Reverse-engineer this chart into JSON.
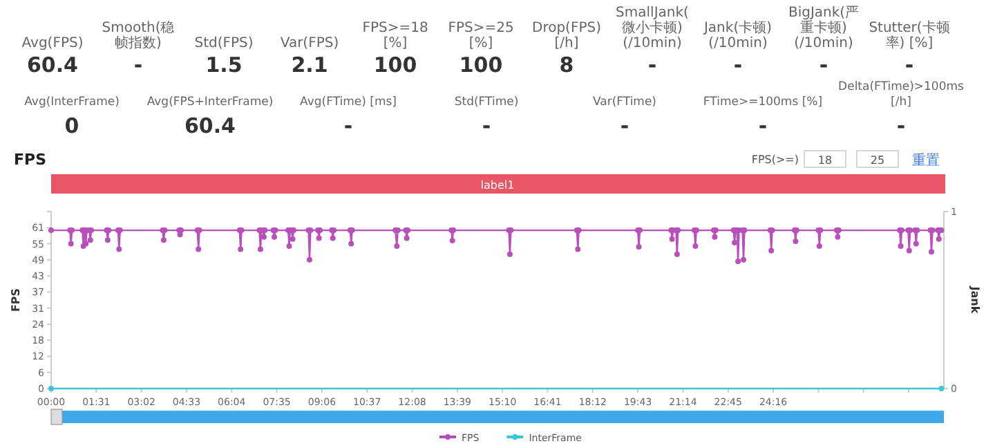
{
  "chart_data": [
    {
      "type": "other",
      "annotations": [
        "Avg(FPS)",
        "60.4",
        "Smooth(稳帧指数)",
        "-",
        "Std(FPS)",
        "1.5",
        "Var(FPS)",
        "2.1",
        "FPS>=18 [%]",
        "100",
        "FPS>=25 [%]",
        "100",
        "Drop(FPS) [/h]",
        "8",
        "SmallJank(微小卡顿)(/10min)",
        "-",
        "Jank(卡顿)(/10min)",
        "-",
        "BigJank(严重卡顿)(/10min)",
        "-",
        "Stutter(卡顿率) [%]",
        "-",
        "Avg(InterFrame)",
        "0",
        "Avg(FPS+InterFrame)",
        "60.4",
        "Avg(FTime) [ms]",
        "-",
        "Std(FTime)",
        "-",
        "Var(FTime)",
        "-",
        "FTime>=100ms [%]",
        "-",
        "Delta(FTime)>100ms [/h]",
        "-"
      ]
    },
    {
      "type": "line",
      "title": "FPS",
      "ylabel": "FPS",
      "y2label": "Jank",
      "annotations": [
        "label1",
        "FPS(>=)",
        "18",
        "25",
        "重置"
      ],
      "xlim": [
        0,
        1800
      ],
      "xticks": [
        {
          "value": 0,
          "label": "00:00"
        },
        {
          "value": 91,
          "label": "01:31"
        },
        {
          "value": 182,
          "label": "03:02"
        },
        {
          "value": 273,
          "label": "04:33"
        },
        {
          "value": 364,
          "label": "06:04"
        },
        {
          "value": 455,
          "label": "07:35"
        },
        {
          "value": 546,
          "label": "09:06"
        },
        {
          "value": 637,
          "label": "10:37"
        },
        {
          "value": 728,
          "label": "12:08"
        },
        {
          "value": 819,
          "label": "13:39"
        },
        {
          "value": 910,
          "label": "15:10"
        },
        {
          "value": 1001,
          "label": "16:41"
        },
        {
          "value": 1092,
          "label": "18:12"
        },
        {
          "value": 1183,
          "label": "19:43"
        },
        {
          "value": 1274,
          "label": "21:14"
        },
        {
          "value": 1365,
          "label": "22:45"
        },
        {
          "value": 1456,
          "label": "24:16"
        },
        {
          "value": 1547,
          "label": null
        },
        {
          "value": 1638,
          "label": null
        },
        {
          "value": 1729,
          "label": null
        }
      ],
      "ylim": [
        0,
        67.1
      ],
      "yticks": [
        {
          "value": 0,
          "label": "0"
        },
        {
          "value": 6.1,
          "label": "6"
        },
        {
          "value": 12.2,
          "label": "12"
        },
        {
          "value": 18.3,
          "label": "18"
        },
        {
          "value": 24.4,
          "label": "24"
        },
        {
          "value": 30.5,
          "label": "31"
        },
        {
          "value": 36.6,
          "label": "37"
        },
        {
          "value": 42.7,
          "label": "43"
        },
        {
          "value": 48.8,
          "label": "49"
        },
        {
          "value": 54.9,
          "label": "55"
        },
        {
          "value": 61,
          "label": "61"
        },
        {
          "value": 67.1,
          "label": null
        }
      ],
      "y2lim": [
        0,
        1
      ],
      "y2ticks": [
        0,
        1
      ],
      "legend": "bottom",
      "marker": "circle",
      "series": [
        {
          "name": "FPS",
          "color": "#b94fbb",
          "x": [
            0,
            38,
            40,
            42,
            63,
            65,
            67,
            68,
            70,
            72,
            77,
            79,
            81,
            112,
            114,
            116,
            135,
            137,
            139,
            225,
            227,
            229,
            258,
            260,
            262,
            295,
            297,
            299,
            380,
            382,
            384,
            420,
            422,
            424,
            427,
            429,
            431,
            448,
            450,
            452,
            478,
            480,
            482,
            485,
            487,
            489,
            519,
            521,
            523,
            538,
            540,
            542,
            566,
            568,
            570,
            603,
            605,
            607,
            694,
            697,
            699,
            715,
            717,
            719,
            807,
            809,
            811,
            923,
            925,
            927,
            1060,
            1062,
            1064,
            1183,
            1185,
            1187,
            1250,
            1252,
            1254,
            1260,
            1262,
            1264,
            1297,
            1299,
            1301,
            1336,
            1338,
            1340,
            1376,
            1378,
            1380,
            1383,
            1385,
            1387,
            1394,
            1396,
            1398,
            1450,
            1452,
            1454,
            1499,
            1501,
            1503,
            1547,
            1549,
            1551,
            1584,
            1586,
            1588,
            1711,
            1713,
            1715,
            1728,
            1730,
            1732,
            1742,
            1744,
            1746,
            1773,
            1775,
            1777,
            1788,
            1790,
            1792,
            1795
          ],
          "values": [
            60,
            60,
            54.9,
            60,
            60,
            54.0,
            60,
            60,
            54.9,
            60,
            60,
            56.3,
            60,
            60,
            56.3,
            60,
            60,
            52.8,
            60,
            60,
            56.3,
            60,
            60,
            58.4,
            60,
            60,
            52.8,
            60,
            60,
            52.8,
            60,
            60,
            52.8,
            60,
            60,
            57.5,
            60,
            60,
            57.5,
            60,
            60,
            54.0,
            60,
            60,
            56.7,
            60,
            60,
            48.8,
            60,
            60,
            57.0,
            60,
            60,
            57.0,
            60,
            60,
            54.9,
            60,
            60,
            54.0,
            60,
            60,
            57.0,
            60,
            60,
            56.1,
            60,
            60,
            50.9,
            60,
            60,
            52.8,
            60,
            60,
            53.7,
            60,
            60,
            56.7,
            60,
            60,
            50.9,
            60,
            60,
            54.0,
            60,
            60,
            57.5,
            60,
            60,
            55.3,
            60,
            60,
            48.2,
            60,
            60,
            48.8,
            60,
            60,
            52.3,
            60,
            60,
            55.8,
            60,
            60,
            54.0,
            60,
            60,
            57.5,
            60,
            60,
            54.0,
            60,
            60,
            52.3,
            60,
            60,
            54.9,
            60,
            60,
            51.8,
            60,
            60,
            56.7,
            60,
            60
          ]
        },
        {
          "name": "InterFrame",
          "color": "#3ac7d3",
          "x": [
            0,
            1795
          ],
          "values": [
            0,
            0
          ]
        }
      ]
    }
  ]
}
